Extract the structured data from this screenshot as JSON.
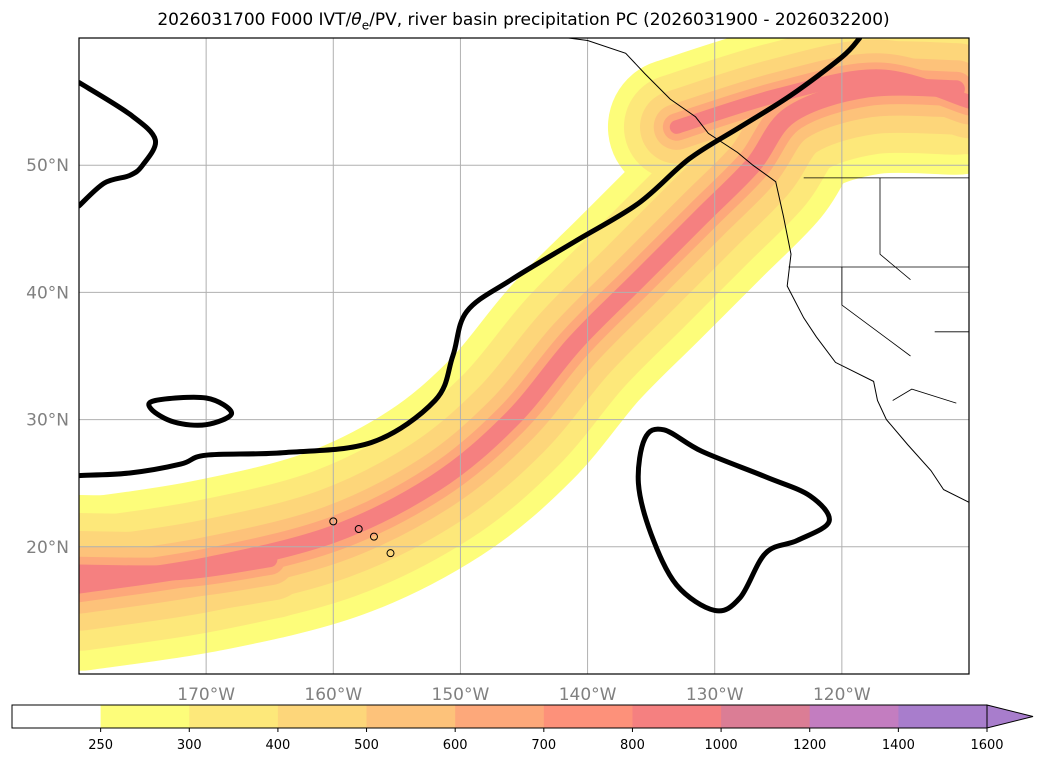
{
  "chart_data": {
    "type": "contour_map",
    "title": {
      "prefix": "2026031700 F000 IVT/",
      "theta": "θ",
      "theta_sub": "e",
      "suffix": "/PV, river basin precipitation PC (2026031900 - 2026032200)"
    },
    "lon_range": [
      -180,
      -110
    ],
    "lat_range": [
      10,
      60
    ],
    "lat_ticks": [
      {
        "value": 50,
        "label": "50°N"
      },
      {
        "value": 40,
        "label": "40°N"
      },
      {
        "value": 30,
        "label": "30°N"
      },
      {
        "value": 20,
        "label": "20°N"
      }
    ],
    "lon_ticks": [
      {
        "value": -170,
        "label": "170°W"
      },
      {
        "value": -160,
        "label": "160°W"
      },
      {
        "value": -150,
        "label": "150°W"
      },
      {
        "value": -140,
        "label": "140°W"
      },
      {
        "value": -130,
        "label": "130°W"
      },
      {
        "value": -120,
        "label": "120°W"
      }
    ],
    "colorbar": {
      "levels": [
        "250",
        "300",
        "400",
        "500",
        "600",
        "700",
        "800",
        "1000",
        "1200",
        "1400",
        "1600"
      ],
      "colors": [
        "#ffffff",
        "#fdfd7a",
        "#fde87a",
        "#fdd67a",
        "#fdc27a",
        "#fda87a",
        "#fd917a",
        "#f58080",
        "#db7d95",
        "#c37dc0",
        "#a87dcc"
      ],
      "extend": "max"
    },
    "ivt_bands": [
      {
        "threshold": "250",
        "color": "#fdfd7a",
        "width": 30
      },
      {
        "threshold": "300",
        "color": "#fde87a",
        "width": 23
      },
      {
        "threshold": "400",
        "color": "#fdd67a",
        "width": 16
      },
      {
        "threshold": "500",
        "color": "#fdc27a",
        "width": 10
      },
      {
        "threshold": "700",
        "color": "#fda87a",
        "width": 6
      },
      {
        "threshold": "800",
        "color": "#f58080",
        "width": 3
      }
    ],
    "ivt_core_path": [
      [
        -180,
        17
      ],
      [
        -170,
        18.5
      ],
      [
        -160,
        21
      ],
      [
        -152,
        25
      ],
      [
        -146,
        30
      ],
      [
        -141,
        36
      ],
      [
        -136,
        41
      ],
      [
        -131,
        46
      ],
      [
        -127,
        50
      ],
      [
        -124,
        54
      ],
      [
        -118,
        56
      ],
      [
        -111,
        56
      ]
    ],
    "ivt_west_blob": [
      [
        -180,
        18
      ],
      [
        -172,
        18
      ],
      [
        -165,
        19
      ]
    ],
    "ivt_north_blob": [
      [
        -133,
        53
      ],
      [
        -125,
        55.5
      ],
      [
        -117,
        57
      ],
      [
        -110,
        55
      ]
    ],
    "pv_contours": [
      {
        "id": "jet",
        "closed": false,
        "points": [
          [
            -180,
            25.6
          ],
          [
            -176,
            25.8
          ],
          [
            -172,
            26.5
          ],
          [
            -170,
            27.2
          ],
          [
            -164,
            27.4
          ],
          [
            -157,
            28.2
          ],
          [
            -152,
            31.5
          ],
          [
            -150.6,
            35
          ],
          [
            -149.5,
            38.5
          ],
          [
            -146,
            41
          ],
          [
            -141,
            44
          ],
          [
            -136,
            47
          ],
          [
            -132,
            50.5
          ],
          [
            -128,
            53
          ],
          [
            -124,
            55.5
          ],
          [
            -120,
            58.5
          ],
          [
            -118.6,
            60
          ]
        ]
      },
      {
        "id": "nw-corner",
        "closed": false,
        "points": [
          [
            -180,
            46.8
          ],
          [
            -178,
            48.6
          ],
          [
            -176,
            49.2
          ],
          [
            -175,
            50
          ],
          [
            -174,
            52
          ],
          [
            -176,
            54
          ],
          [
            -180,
            56.5
          ]
        ]
      },
      {
        "id": "west-small",
        "closed": true,
        "points": [
          [
            -174,
            31.5
          ],
          [
            -170,
            31.7
          ],
          [
            -168,
            30.5
          ],
          [
            -170,
            29.6
          ],
          [
            -172.5,
            29.8
          ],
          [
            -174.3,
            30.8
          ]
        ]
      },
      {
        "id": "central-loop",
        "closed": true,
        "points": [
          [
            -134,
            29.2
          ],
          [
            -131,
            27.5
          ],
          [
            -126,
            25.5
          ],
          [
            -122.5,
            24
          ],
          [
            -121,
            22
          ],
          [
            -123.5,
            20.5
          ],
          [
            -126,
            19.5
          ],
          [
            -128,
            16
          ],
          [
            -130,
            15
          ],
          [
            -133,
            17
          ],
          [
            -135,
            21
          ],
          [
            -136,
            25
          ],
          [
            -135.5,
            28.5
          ]
        ]
      }
    ],
    "coastline": [
      [
        -152,
        60
      ],
      [
        -148,
        60.5
      ],
      [
        -146,
        60
      ],
      [
        -143,
        60.2
      ],
      [
        -140,
        59.8
      ],
      [
        -137,
        58.8
      ],
      [
        -135.5,
        57.2
      ],
      [
        -133.5,
        55.2
      ],
      [
        -131.5,
        53.8
      ],
      [
        -130.5,
        52.5
      ],
      [
        -128.2,
        51
      ],
      [
        -127,
        50
      ],
      [
        -125.2,
        48.7
      ],
      [
        -124.6,
        46
      ],
      [
        -124,
        43
      ],
      [
        -124.3,
        40.5
      ],
      [
        -123,
        38
      ],
      [
        -122,
        36.5
      ],
      [
        -120.5,
        34.5
      ],
      [
        -117.5,
        33
      ],
      [
        -117.2,
        31.5
      ],
      [
        -116.5,
        30
      ],
      [
        -114.8,
        28
      ],
      [
        -113,
        26
      ],
      [
        -112,
        24.5
      ],
      [
        -110,
        23.5
      ]
    ],
    "borders": [
      [
        [
          -123,
          49
        ],
        [
          -110,
          49
        ]
      ],
      [
        [
          -124.2,
          42
        ],
        [
          -110,
          42
        ]
      ],
      [
        [
          -120,
          42
        ],
        [
          -120,
          39
        ],
        [
          -114.6,
          35
        ]
      ],
      [
        [
          -117,
          49
        ],
        [
          -117,
          43
        ],
        [
          -114.6,
          41
        ]
      ],
      [
        [
          -116,
          31.5
        ],
        [
          -114.5,
          32.4
        ],
        [
          -111,
          31.3
        ]
      ],
      [
        [
          -112.7,
          36.9
        ],
        [
          -110,
          36.9
        ]
      ]
    ],
    "hawaii": [
      [
        -160,
        22
      ],
      [
        -158,
        21.4
      ],
      [
        -156.8,
        20.8
      ],
      [
        -155.5,
        19.5
      ]
    ]
  }
}
